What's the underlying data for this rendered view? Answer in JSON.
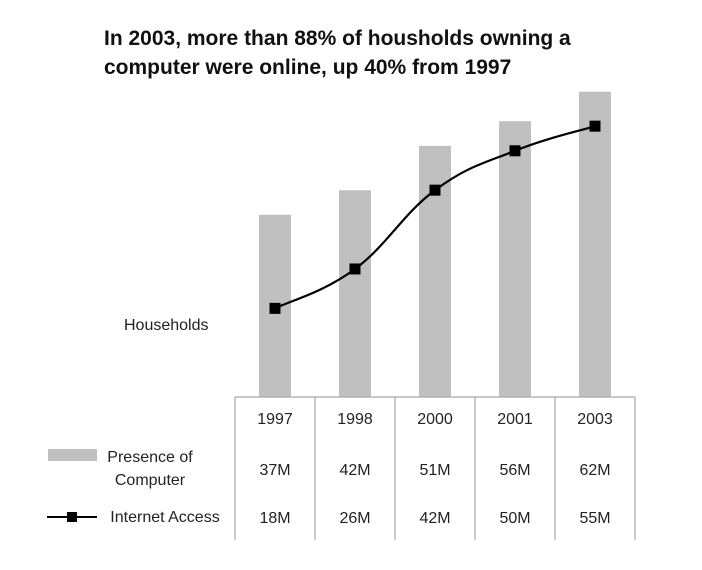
{
  "chart_data": {
    "type": "bar",
    "title_lines": [
      "In 2003, more than 88% of housholds owning a",
      "computer were online, up 40% from 1997"
    ],
    "ylabel": "Households",
    "categories": [
      "1997",
      "1998",
      "2000",
      "2001",
      "2003"
    ],
    "ylim": [
      0,
      66
    ],
    "series": [
      {
        "name": "Presence of Computer",
        "name_lines": [
          "Presence of",
          "Computer"
        ],
        "kind": "bar",
        "values": [
          37,
          42,
          51,
          56,
          62
        ],
        "labels": [
          "37M",
          "42M",
          "51M",
          "56M",
          "62M"
        ]
      },
      {
        "name": "Internet Access",
        "kind": "line",
        "values": [
          18,
          26,
          42,
          50,
          55
        ],
        "labels": [
          "18M",
          "26M",
          "42M",
          "50M",
          "55M"
        ]
      }
    ]
  },
  "colors": {
    "bar": "#c0c0c0",
    "line": "#000000",
    "grid": "#a6a6a6",
    "text": "#222222"
  }
}
